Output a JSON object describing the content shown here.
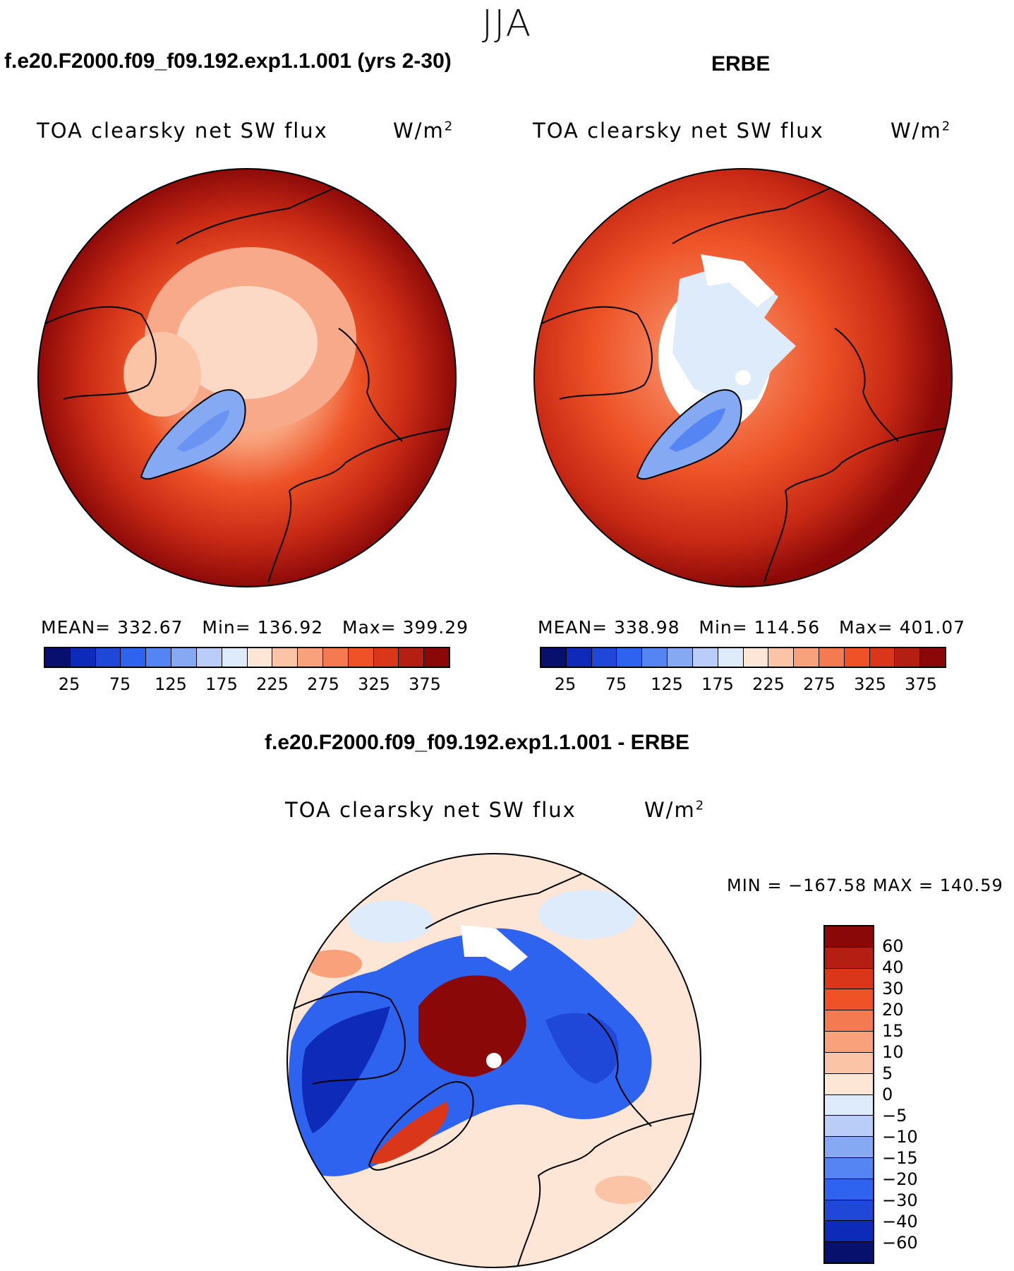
{
  "season": "JJA",
  "panels": [
    {
      "id": "model",
      "case_title": "f.e20.F2000.f09_f09.192.exp1.1.001 (yrs 2-30)",
      "variable": "TOA clearsky net SW flux",
      "units": "W/m",
      "units_sup": "2",
      "stats": {
        "mean_label": "MEAN=",
        "mean": "332.67",
        "min_label": "Min=",
        "min": "136.92",
        "max_label": "Max=",
        "max": "399.29"
      },
      "colorbar_ticks": [
        "25",
        "75",
        "125",
        "175",
        "225",
        "275",
        "325",
        "375"
      ]
    },
    {
      "id": "obs",
      "case_title": "ERBE",
      "variable": "TOA clearsky net SW flux",
      "units": "W/m",
      "units_sup": "2",
      "stats": {
        "mean_label": "MEAN=",
        "mean": "338.98",
        "min_label": "Min=",
        "min": "114.56",
        "max_label": "Max=",
        "max": "401.07"
      },
      "colorbar_ticks": [
        "25",
        "75",
        "125",
        "175",
        "225",
        "275",
        "325",
        "375"
      ]
    }
  ],
  "difference": {
    "case_title": "f.e20.F2000.f09_f09.192.exp1.1.001 - ERBE",
    "variable": "TOA clearsky net SW flux",
    "units": "W/m",
    "units_sup": "2",
    "minmax": "MIN = −167.58 MAX = 140.59",
    "colorbar_labels": [
      "60",
      "40",
      "30",
      "20",
      "15",
      "10",
      "5",
      "0",
      "−5",
      "−10",
      "−15",
      "−20",
      "−30",
      "−40",
      "−60"
    ]
  },
  "colors": {
    "abs_scale": [
      "#08106e",
      "#0d2ab8",
      "#1f47d8",
      "#2e63f0",
      "#5585f2",
      "#86a9f4",
      "#b9cdf8",
      "#deebfb",
      "#fde6d6",
      "#fbc4a6",
      "#f8a17b",
      "#f47a52",
      "#ee5226",
      "#d9361a",
      "#b51f12",
      "#8a0808"
    ],
    "diff_scale_top_to_bottom": [
      "#8a0808",
      "#b51f12",
      "#d9361a",
      "#ee5226",
      "#f47a52",
      "#f8a17b",
      "#fbc4a6",
      "#fde6d6",
      "#deebfb",
      "#b9cdf8",
      "#86a9f4",
      "#5585f2",
      "#2e63f0",
      "#1f47d8",
      "#0d2ab8",
      "#08106e"
    ]
  }
}
